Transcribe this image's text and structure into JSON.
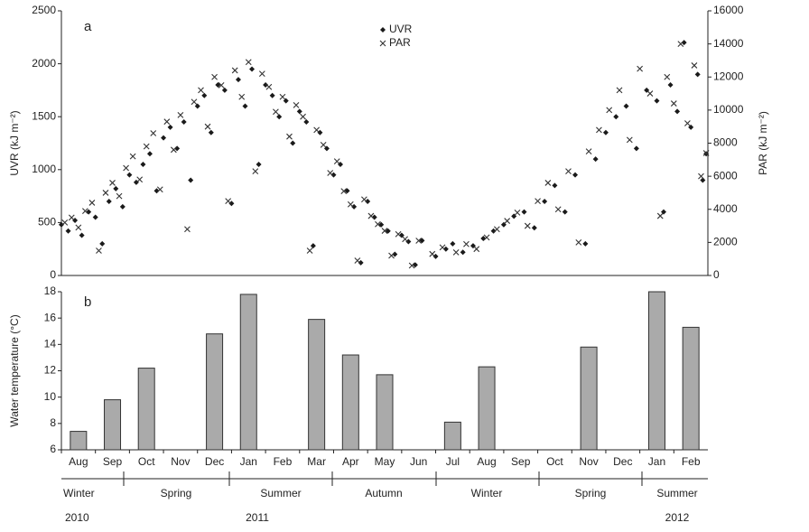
{
  "chart_data": [
    {
      "type": "scatter",
      "panel_label": "a",
      "ylabel": "UVR (kJ m⁻²)",
      "y2label": "PAR (kJ m⁻²)",
      "xlim": [
        -0.5,
        18.5
      ],
      "ylim": [
        0,
        2500
      ],
      "yticks": [
        0,
        500,
        1000,
        1500,
        2000,
        2500
      ],
      "y2lim": [
        0,
        16000
      ],
      "y2ticks": [
        0,
        2000,
        4000,
        6000,
        8000,
        10000,
        12000,
        14000,
        16000
      ],
      "grid": false,
      "legend": "top",
      "series": [
        {
          "name": "UVR",
          "marker": "diamond",
          "color": "#1a1a1a",
          "x": [
            -0.5,
            -0.3,
            -0.1,
            0.1,
            0.3,
            0.5,
            0.7,
            0.9,
            1.1,
            1.3,
            1.5,
            1.7,
            1.9,
            2.1,
            2.3,
            2.5,
            2.7,
            2.9,
            3.1,
            3.3,
            3.5,
            3.7,
            3.9,
            4.1,
            4.3,
            4.5,
            4.7,
            4.9,
            5.1,
            5.3,
            5.5,
            5.7,
            5.9,
            6.1,
            6.3,
            6.5,
            6.7,
            6.9,
            7.1,
            7.3,
            7.5,
            7.7,
            7.9,
            8.1,
            8.3,
            8.5,
            8.7,
            8.9,
            9.1,
            9.3,
            9.5,
            9.7,
            9.9,
            10.1,
            10.5,
            10.8,
            11.0,
            11.3,
            11.6,
            11.9,
            12.2,
            12.5,
            12.8,
            13.1,
            13.4,
            13.7,
            14.0,
            14.3,
            14.6,
            14.9,
            15.2,
            15.5,
            15.8,
            16.1,
            16.4,
            16.7,
            17.0,
            17.2,
            17.4,
            17.6,
            17.8,
            18.0,
            18.2,
            18.35,
            18.45
          ],
          "values": [
            480,
            420,
            520,
            380,
            600,
            550,
            300,
            700,
            820,
            650,
            950,
            880,
            1050,
            1150,
            800,
            1300,
            1400,
            1200,
            1450,
            900,
            1600,
            1700,
            1350,
            1800,
            1750,
            680,
            1850,
            1600,
            1950,
            1050,
            1800,
            1700,
            1500,
            1650,
            1250,
            1550,
            1450,
            280,
            1350,
            1200,
            950,
            1050,
            800,
            650,
            120,
            700,
            550,
            480,
            420,
            200,
            380,
            320,
            100,
            330,
            180,
            250,
            300,
            220,
            280,
            350,
            420,
            480,
            560,
            600,
            450,
            700,
            850,
            600,
            950,
            300,
            1100,
            1350,
            1500,
            1600,
            1200,
            1750,
            1650,
            600,
            1800,
            1550,
            2200,
            1400,
            1900,
            900,
            1150
          ]
        },
        {
          "name": "PAR",
          "marker": "cross",
          "color": "#333333",
          "axis": "y2",
          "x": [
            -0.4,
            -0.2,
            0.0,
            0.2,
            0.4,
            0.6,
            0.8,
            1.0,
            1.2,
            1.4,
            1.6,
            1.8,
            2.0,
            2.2,
            2.4,
            2.6,
            2.8,
            3.0,
            3.2,
            3.4,
            3.6,
            3.8,
            4.0,
            4.2,
            4.4,
            4.6,
            4.8,
            5.0,
            5.2,
            5.4,
            5.6,
            5.8,
            6.0,
            6.2,
            6.4,
            6.6,
            6.8,
            7.0,
            7.2,
            7.4,
            7.6,
            7.8,
            8.0,
            8.2,
            8.4,
            8.6,
            8.8,
            9.0,
            9.2,
            9.4,
            9.6,
            9.8,
            10.0,
            10.4,
            10.7,
            11.1,
            11.4,
            11.7,
            12.0,
            12.3,
            12.6,
            12.9,
            13.2,
            13.5,
            13.8,
            14.1,
            14.4,
            14.7,
            15.0,
            15.3,
            15.6,
            15.9,
            16.2,
            16.5,
            16.8,
            17.1,
            17.3,
            17.5,
            17.7,
            17.9,
            18.1,
            18.3,
            18.45
          ],
          "values": [
            3200,
            3500,
            2900,
            3900,
            4400,
            1500,
            5000,
            5600,
            4800,
            6500,
            7200,
            5800,
            7800,
            8600,
            5200,
            9300,
            7600,
            9700,
            2800,
            10500,
            11200,
            9000,
            12000,
            11500,
            4500,
            12400,
            10800,
            12900,
            6300,
            12200,
            11400,
            9900,
            10800,
            8400,
            10300,
            9600,
            1500,
            8800,
            7900,
            6200,
            6900,
            5100,
            4300,
            900,
            4600,
            3600,
            3100,
            2700,
            1200,
            2500,
            2200,
            600,
            2100,
            1300,
            1700,
            1400,
            1900,
            1600,
            2300,
            2800,
            3300,
            3800,
            3000,
            4500,
            5600,
            4000,
            6300,
            2000,
            7500,
            8800,
            10000,
            11200,
            8200,
            12500,
            11000,
            3600,
            12000,
            10400,
            14000,
            9200,
            12700,
            6000,
            7400
          ]
        }
      ]
    },
    {
      "type": "bar",
      "panel_label": "b",
      "ylabel": "Water temperature (°C)",
      "color": "#aaaaaa",
      "categories": [
        "Aug",
        "Sep",
        "Oct",
        "Nov",
        "Dec",
        "Jan",
        "Feb",
        "Mar",
        "Apr",
        "May",
        "Jun",
        "Jul",
        "Aug",
        "Sep",
        "Oct",
        "Nov",
        "Dec",
        "Jan",
        "Feb"
      ],
      "values": [
        7.4,
        9.8,
        12.2,
        null,
        14.8,
        17.8,
        null,
        15.9,
        13.2,
        11.7,
        null,
        8.1,
        12.3,
        null,
        null,
        13.8,
        null,
        18,
        15.3
      ],
      "ylim": [
        6,
        18
      ],
      "yticks": [
        6,
        8,
        10,
        12,
        14,
        16,
        18
      ],
      "grid": false
    }
  ],
  "timeline": {
    "seasons": [
      "Winter",
      "Spring",
      "Summer",
      "Autumn",
      "Winter",
      "Spring",
      "Summer"
    ],
    "years": [
      "2010",
      "2011",
      "2012"
    ]
  }
}
